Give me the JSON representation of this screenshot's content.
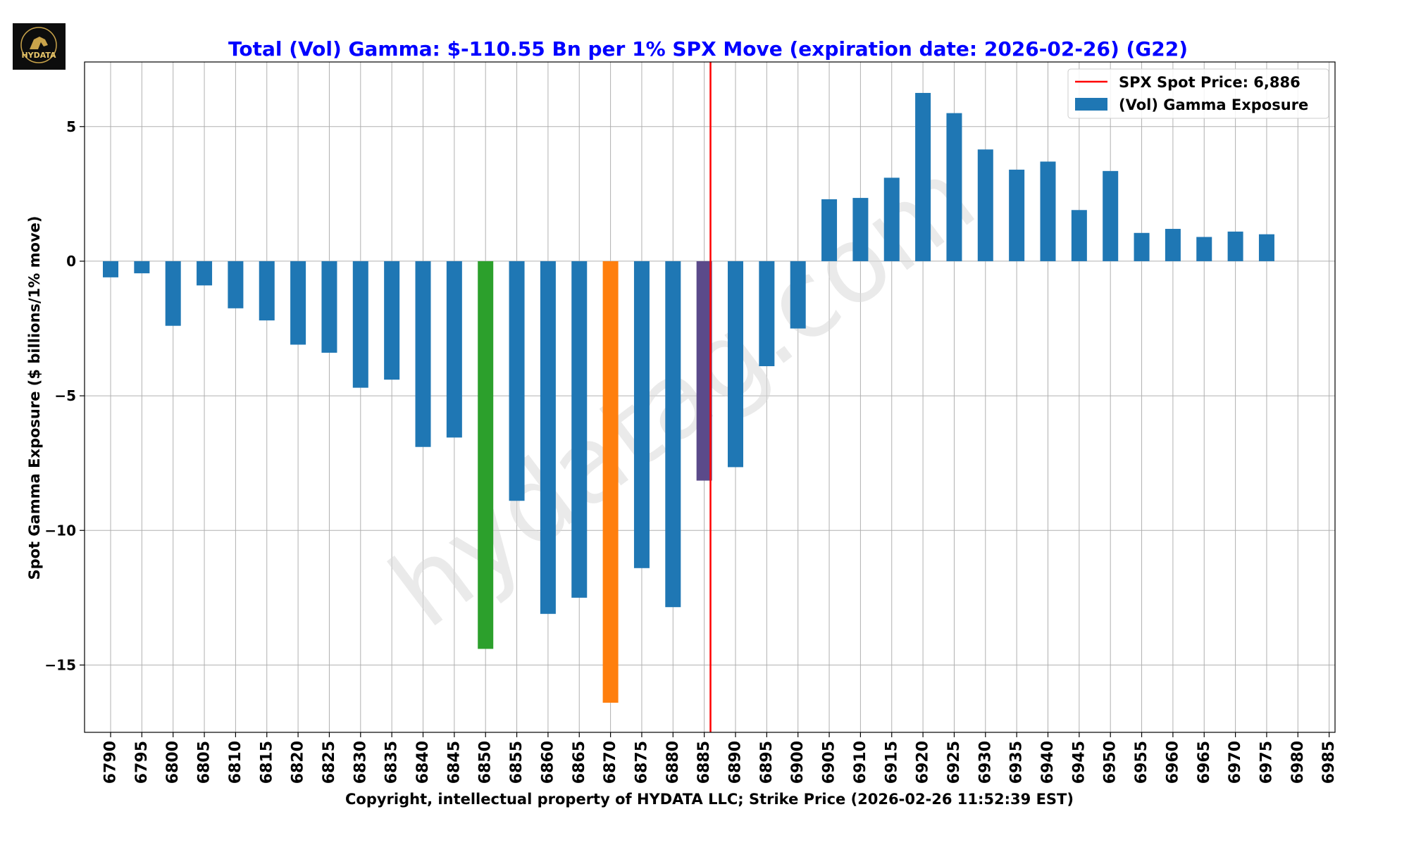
{
  "logo": {
    "text": "HYDATA"
  },
  "watermark": {
    "text": "hydatag.com"
  },
  "legend": {
    "spot_label": "SPX Spot Price: 6,886",
    "bar_label": "(Vol) Gamma Exposure"
  },
  "colors": {
    "title": "#0000ff",
    "bar": "#1f77b4",
    "highlight_green": "#2ca02c",
    "highlight_orange": "#ff7f0e",
    "highlight_purple": "#5b4a8a",
    "spot_line": "#ff0000",
    "grid": "#b0b0b0"
  },
  "chart_data": {
    "type": "bar",
    "title": "Total (Vol) Gamma: $-110.55 Bn per 1% SPX Move (expiration date: 2026-02-26) (G22)",
    "xlabel": "Copyright, intellectual property of HYDATA LLC; Strike Price (2026-02-26 11:52:39 EST)",
    "ylabel": "Spot Gamma Exposure ($ billions/1% move)",
    "categories": [
      "6790",
      "6795",
      "6800",
      "6805",
      "6810",
      "6815",
      "6820",
      "6825",
      "6830",
      "6835",
      "6840",
      "6845",
      "6850",
      "6855",
      "6860",
      "6865",
      "6870",
      "6875",
      "6880",
      "6885",
      "6890",
      "6895",
      "6900",
      "6905",
      "6910",
      "6915",
      "6920",
      "6925",
      "6930",
      "6935",
      "6940",
      "6945",
      "6950",
      "6955",
      "6960",
      "6965",
      "6970",
      "6975",
      "6980",
      "6985"
    ],
    "values": [
      -0.6,
      -0.45,
      -2.4,
      -0.9,
      -1.75,
      -2.2,
      -3.1,
      -3.4,
      -4.7,
      -4.4,
      -6.9,
      -6.55,
      -14.4,
      -8.9,
      -13.1,
      -12.5,
      -16.4,
      -11.4,
      -12.85,
      -8.15,
      -7.65,
      -3.9,
      -2.5,
      2.3,
      2.35,
      3.1,
      6.25,
      5.5,
      4.15,
      3.4,
      3.7,
      1.9,
      3.35,
      1.05,
      1.2,
      0.9,
      1.1,
      1.0,
      0,
      0
    ],
    "highlights": {
      "6850": "green",
      "6870": "orange",
      "6885": "purple"
    },
    "spot_price": 6886,
    "ylim": [
      -17.5,
      7.4
    ],
    "yticks": [
      5,
      0,
      -5,
      -10,
      -15
    ],
    "ytick_labels": [
      "5",
      "0",
      "−5",
      "−10",
      "−15"
    ],
    "grid": true,
    "legend_position": "top-right"
  }
}
